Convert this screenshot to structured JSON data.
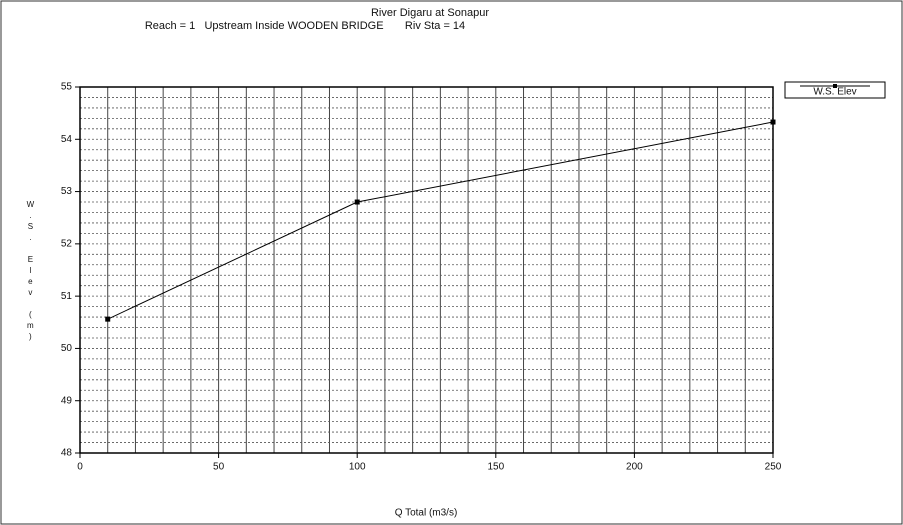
{
  "chart_data": {
    "type": "line",
    "title": "River Digaru at Sonapur",
    "subtitle": "Reach = 1   Upstream Inside WOODEN BRIDGE       Riv Sta = 14",
    "xlabel": "Q Total (m3/s)",
    "ylabel": "W.S. Elev (m)",
    "x": [
      10,
      100,
      250
    ],
    "series": [
      {
        "name": "W.S. Elev",
        "color": "#000000",
        "values": [
          50.56,
          52.8,
          54.33
        ]
      }
    ],
    "xlim": [
      0,
      250
    ],
    "xticks": [
      0,
      50,
      100,
      150,
      200,
      250
    ],
    "ylim": [
      48,
      55
    ],
    "yticks": [
      48,
      49,
      50,
      51,
      52,
      53,
      54,
      55
    ],
    "xgrid": [
      10,
      20,
      30,
      40,
      50,
      60,
      70,
      80,
      90,
      100,
      110,
      120,
      130,
      140,
      150,
      160,
      170,
      180,
      190,
      200,
      210,
      220,
      230,
      240
    ],
    "ygrid": [
      48.2,
      48.4,
      48.6,
      48.8,
      49,
      49.2,
      49.4,
      49.6,
      49.8,
      50,
      50.2,
      50.4,
      50.6,
      50.8,
      51,
      51.2,
      51.4,
      51.6,
      51.8,
      52,
      52.2,
      52.4,
      52.6,
      52.8,
      53,
      53.2,
      53.4,
      53.6,
      53.8,
      54,
      54.2,
      54.4,
      54.6,
      54.8
    ],
    "legend": "top-right"
  }
}
